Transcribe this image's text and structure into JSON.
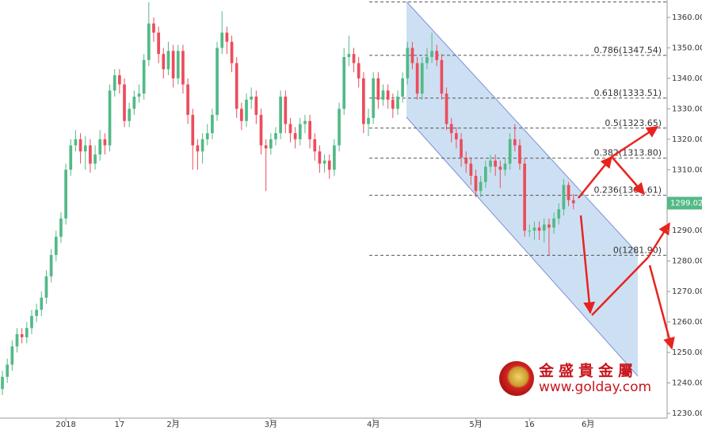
{
  "chart_data": {
    "type": "candlestick",
    "open": [
      1238,
      1242,
      1246,
      1252,
      1256,
      1255,
      1258,
      1262,
      1264,
      1268,
      1275,
      1282,
      1288,
      1294,
      1310,
      1318,
      1320,
      1316,
      1318,
      1312,
      1315,
      1320,
      1318,
      1336,
      1341,
      1338,
      1326,
      1330,
      1334,
      1335,
      1346,
      1358,
      1355,
      1348,
      1343,
      1349,
      1340,
      1349,
      1338,
      1328,
      1318,
      1316,
      1320,
      1322,
      1328,
      1350,
      1355,
      1352,
      1345,
      1330,
      1326,
      1333,
      1334,
      1328,
      1318,
      1317,
      1320,
      1322,
      1334,
      1325,
      1322,
      1320,
      1325,
      1326,
      1320,
      1316,
      1312,
      1313,
      1310,
      1318,
      1330,
      1347,
      1348,
      1345,
      1340,
      1325,
      1327,
      1340,
      1333,
      1336,
      1333,
      1330,
      1334,
      1340,
      1350,
      1345,
      1335,
      1345,
      1347,
      1349,
      1346,
      1335,
      1325,
      1322,
      1320,
      1314,
      1312,
      1308,
      1303,
      1306,
      1311,
      1313,
      1311,
      1310,
      1312,
      1320,
      1318,
      1312,
      1290,
      1290,
      1291,
      1290,
      1292,
      1291,
      1294,
      1297,
      1305,
      1300
    ],
    "high": [
      1244,
      1248,
      1254,
      1258,
      1258,
      1260,
      1264,
      1266,
      1270,
      1277,
      1284,
      1290,
      1296,
      1312,
      1320,
      1323,
      1322,
      1321,
      1320,
      1318,
      1323,
      1322,
      1338,
      1343,
      1343,
      1340,
      1332,
      1336,
      1338,
      1348,
      1365,
      1360,
      1357,
      1350,
      1352,
      1351,
      1351,
      1351,
      1340,
      1330,
      1320,
      1322,
      1325,
      1330,
      1352,
      1362,
      1357,
      1354,
      1347,
      1332,
      1335,
      1337,
      1336,
      1330,
      1320,
      1322,
      1324,
      1336,
      1336,
      1327,
      1324,
      1327,
      1328,
      1328,
      1322,
      1318,
      1315,
      1315,
      1320,
      1332,
      1350,
      1354,
      1350,
      1347,
      1342,
      1330,
      1342,
      1342,
      1338,
      1338,
      1335,
      1336,
      1342,
      1352,
      1352,
      1347,
      1347,
      1350,
      1355,
      1351,
      1348,
      1337,
      1327,
      1324,
      1322,
      1316,
      1314,
      1310,
      1308,
      1313,
      1315,
      1315,
      1313,
      1314,
      1322,
      1325,
      1320,
      1314,
      1292,
      1293,
      1293,
      1294,
      1294,
      1296,
      1299,
      1307,
      1306,
      1302
    ],
    "low": [
      1236,
      1240,
      1244,
      1250,
      1253,
      1253,
      1256,
      1260,
      1262,
      1266,
      1273,
      1280,
      1286,
      1292,
      1308,
      1316,
      1312,
      1310,
      1309,
      1310,
      1313,
      1315,
      1316,
      1334,
      1335,
      1324,
      1324,
      1328,
      1332,
      1333,
      1344,
      1352,
      1345,
      1340,
      1341,
      1337,
      1338,
      1335,
      1325,
      1310,
      1310,
      1312,
      1318,
      1320,
      1326,
      1348,
      1348,
      1342,
      1327,
      1323,
      1324,
      1330,
      1325,
      1315,
      1303,
      1315,
      1318,
      1320,
      1322,
      1319,
      1317,
      1318,
      1322,
      1317,
      1313,
      1309,
      1309,
      1307,
      1308,
      1316,
      1328,
      1344,
      1342,
      1337,
      1322,
      1321,
      1325,
      1330,
      1331,
      1330,
      1327,
      1328,
      1332,
      1338,
      1343,
      1333,
      1333,
      1343,
      1345,
      1344,
      1333,
      1323,
      1319,
      1317,
      1311,
      1309,
      1305,
      1301,
      1301,
      1304,
      1309,
      1308,
      1304,
      1308,
      1310,
      1316,
      1310,
      1288,
      1288,
      1287,
      1287,
      1286,
      1282,
      1289,
      1292,
      1295,
      1298,
      1297
    ],
    "close": [
      1242,
      1246,
      1252,
      1256,
      1255,
      1258,
      1262,
      1264,
      1268,
      1275,
      1282,
      1288,
      1294,
      1310,
      1318,
      1320,
      1316,
      1318,
      1312,
      1315,
      1320,
      1318,
      1336,
      1341,
      1338,
      1326,
      1330,
      1334,
      1335,
      1346,
      1358,
      1355,
      1348,
      1343,
      1349,
      1340,
      1349,
      1338,
      1328,
      1318,
      1316,
      1320,
      1322,
      1328,
      1350,
      1355,
      1352,
      1345,
      1330,
      1326,
      1333,
      1334,
      1328,
      1318,
      1317,
      1320,
      1322,
      1334,
      1325,
      1322,
      1320,
      1325,
      1326,
      1320,
      1316,
      1312,
      1313,
      1310,
      1318,
      1330,
      1347,
      1348,
      1345,
      1340,
      1325,
      1327,
      1340,
      1333,
      1336,
      1333,
      1330,
      1334,
      1340,
      1350,
      1345,
      1335,
      1345,
      1347,
      1349,
      1346,
      1335,
      1325,
      1322,
      1320,
      1314,
      1312,
      1308,
      1303,
      1306,
      1311,
      1313,
      1311,
      1310,
      1312,
      1320,
      1318,
      1312,
      1290,
      1290,
      1291,
      1290,
      1292,
      1291,
      1294,
      1297,
      1305,
      1300,
      1299
    ],
    "up_color": "#53b987",
    "down_color": "#eb4d5c",
    "xlim": [
      -0.49,
      136.2
    ],
    "xticks": [
      {
        "value": 13,
        "label": "2018"
      },
      {
        "value": 24,
        "label": "17"
      },
      {
        "value": 35,
        "label": "2月"
      },
      {
        "value": 55,
        "label": "3月"
      },
      {
        "value": 76,
        "label": "4月"
      },
      {
        "value": 97,
        "label": "5月"
      },
      {
        "value": 108,
        "label": "16"
      },
      {
        "value": 120,
        "label": "6月"
      }
    ],
    "ylim": [
      1228.44,
      1365.72
    ],
    "yticks": [
      {
        "value": 1230,
        "label": "1230.00"
      },
      {
        "value": 1240,
        "label": "1240.00"
      },
      {
        "value": 1250,
        "label": "1250.00"
      },
      {
        "value": 1260,
        "label": "1260.00"
      },
      {
        "value": 1270,
        "label": "1270.00"
      },
      {
        "value": 1280,
        "label": "1280.00"
      },
      {
        "value": 1290,
        "label": "1290.00"
      },
      {
        "value": 1300,
        "label": "1300.00"
      },
      {
        "value": 1310,
        "label": "1310.00"
      },
      {
        "value": 1320,
        "label": "1320.00"
      },
      {
        "value": 1330,
        "label": "1330.00"
      },
      {
        "value": 1340,
        "label": "1340.00"
      },
      {
        "value": 1350,
        "label": "1350.00"
      },
      {
        "value": 1360,
        "label": "1360.00"
      }
    ],
    "fib_levels": [
      {
        "value": 1365.1
      },
      {
        "value": 1347.54,
        "label": "0.786(1347.54)"
      },
      {
        "value": 1333.51,
        "label": "0.618(1333.51)"
      },
      {
        "value": 1323.65,
        "label": "0.5(1323.65)"
      },
      {
        "value": 1313.8,
        "label": "0.382(1313.80)"
      },
      {
        "value": 1301.61,
        "label": "0.236(1301.61)"
      },
      {
        "value": 1281.9,
        "label": "0(1281.90)"
      }
    ],
    "last_price": 1299.02,
    "last_price_color": "#53b987",
    "watermark": {
      "name": "金盛貴金屬",
      "url": "www.golday.com"
    }
  }
}
